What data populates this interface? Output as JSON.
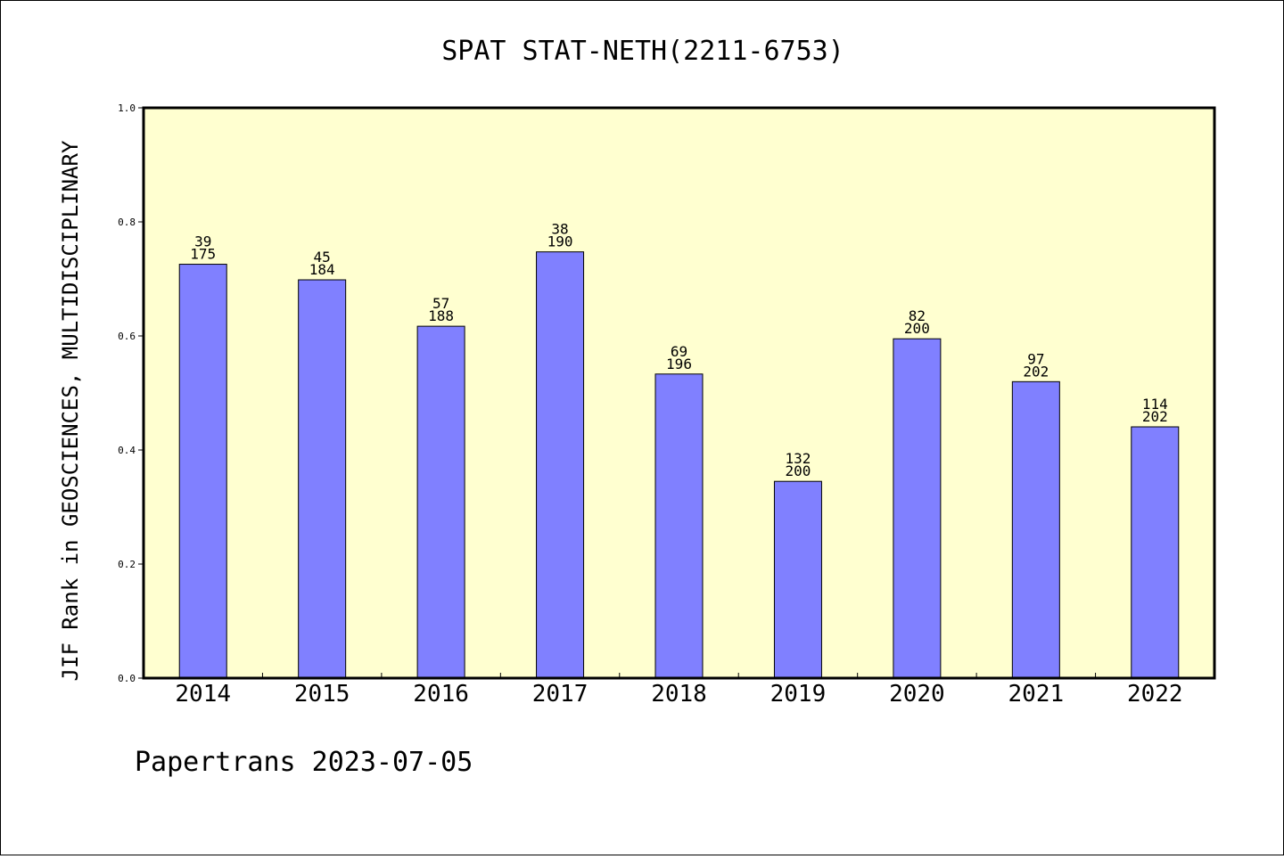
{
  "chart_data": {
    "type": "bar",
    "title": "SPAT STAT-NETH(2211-6753)",
    "xlabel": "",
    "ylabel": "JIF Rank in GEOSCIENCES, MULTIDISCIPLINARY",
    "ylim": [
      0,
      1.0
    ],
    "yticks": [
      "0.0",
      "0.2",
      "0.4",
      "0.6",
      "0.8",
      "1.0"
    ],
    "categories": [
      "2014",
      "2015",
      "2016",
      "2017",
      "2018",
      "2019",
      "2020",
      "2021",
      "2022"
    ],
    "values": [
      0.7257,
      0.6984,
      0.617,
      0.7474,
      0.5332,
      0.345,
      0.595,
      0.5198,
      0.4406
    ],
    "rank": [
      "39",
      "45",
      "57",
      "38",
      "69",
      "132",
      "82",
      "97",
      "114"
    ],
    "total": [
      "175",
      "184",
      "188",
      "190",
      "196",
      "200",
      "200",
      "202",
      "202"
    ],
    "grid": false,
    "legend": "none",
    "colors": {
      "bar": "#8080ff",
      "plot_bg": "#ffffd0"
    }
  },
  "footer": "Papertrans 2023-07-05"
}
